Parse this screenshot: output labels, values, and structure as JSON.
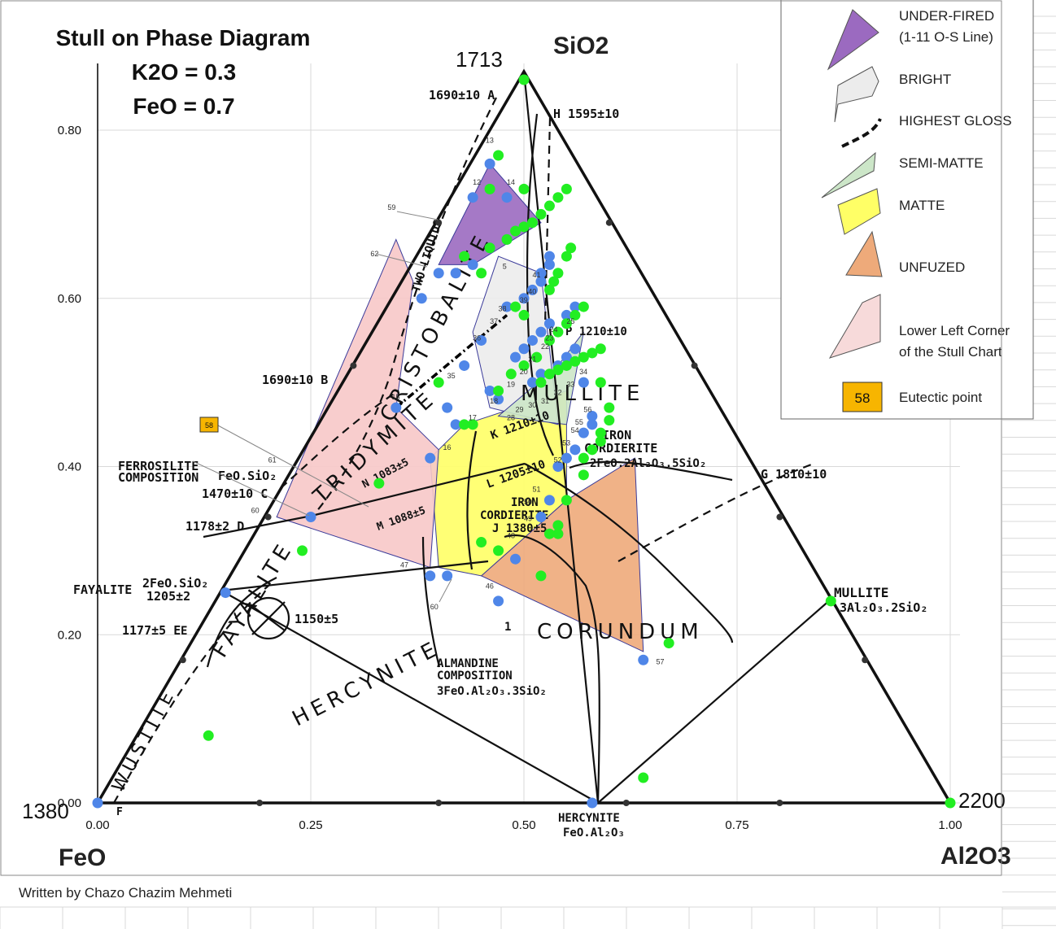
{
  "title_lines": [
    "Stull on Phase Diagram",
    "K2O =  0.3",
    "FeO = 0.7"
  ],
  "author": "Written by Chazo Chazim Mehmeti",
  "chart_data": {
    "type": "scatter",
    "x_axis": {
      "range": [
        0,
        1
      ],
      "ticks": [
        "0.00",
        "0.25",
        "0.50",
        "0.75",
        "1.00"
      ]
    },
    "y_axis": {
      "range": [
        0,
        0.85
      ],
      "ticks": [
        "0.00",
        "0.20",
        "0.40",
        "0.60",
        "0.80"
      ]
    },
    "grid": true,
    "vertices": {
      "sio2": {
        "label": "SiO2",
        "temp": "1713"
      },
      "feo": {
        "label": "FeO",
        "temp": "1380"
      },
      "al2o3": {
        "label": "Al2O3",
        "temp": "2200"
      }
    },
    "phase_fields": [
      "CRISTOBALITE",
      "TRIDYMITE",
      "MULLITE",
      "CORUNDUM",
      "HERCYNITE",
      "FAYALITE",
      "WÜSTITE",
      "TWO LIQUIDS"
    ],
    "annotations": {
      "a1690": "1690±10 A",
      "h1595": "H 1595±10",
      "b1690": "1690±10 B",
      "ferrosilite1": "FERROSILITE",
      "ferrosilite2": "COMPOSITION",
      "ferrosilite_formula": "FeO.SiO₂",
      "c1470": "1470±10 C",
      "d1178": "1178±2  D",
      "fayalite": "FAYALITE",
      "fayalite_formula": "2FeO.SiO₂",
      "fayalite_temp": "1205±2",
      "e1177": "1177±5  E",
      "t1150": "1150±5",
      "almandine1": "ALMANDINE",
      "almandine2": "COMPOSITION",
      "almandine_formula": "3FeO.Al₂O₃.3SiO₂",
      "hercynite_comp": "HERCYNITE",
      "hercynite_formula": "FeO.Al₂O₃",
      "mullite_label": "MULLITE",
      "mullite_formula": "3Al₂O₃.2SiO₂",
      "g1810": "G 1810±10",
      "iron_cordierite1": "IRON",
      "iron_cordierite2": "CORDIERITE",
      "iron_cord_formula": "2FeO.2Al₂O₃.5SiO₂",
      "k1210": "K 1210±10",
      "l1205": "L 1205±10",
      "iron2": "IRON",
      "cordierite2": "CORDIERITE",
      "j1380": "J 1380±5",
      "n1083": "N 1083±5",
      "m1088": "M 1088±5",
      "p1210": "P 1210±10",
      "small_e": "E",
      "small_f": "F",
      "small_1": "1"
    },
    "regions": [
      {
        "name": "UNFUZED",
        "color": "#eeaa7a",
        "points": [
          [
            0.55,
            0.36
          ],
          [
            0.63,
            0.41
          ],
          [
            0.64,
            0.18
          ],
          [
            0.45,
            0.27
          ]
        ]
      },
      {
        "name": "MATTE",
        "color": "#ffff66",
        "points": [
          [
            0.43,
            0.45
          ],
          [
            0.55,
            0.49
          ],
          [
            0.55,
            0.36
          ],
          [
            0.45,
            0.27
          ],
          [
            0.4,
            0.28
          ],
          [
            0.39,
            0.41
          ]
        ]
      },
      {
        "name": "Lower Left Corner of the Stull Chart",
        "color": "#f7c8c8",
        "points": [
          [
            0.37,
            0.62
          ],
          [
            0.35,
            0.47
          ],
          [
            0.4,
            0.42
          ],
          [
            0.39,
            0.28
          ],
          [
            0.21,
            0.34
          ],
          [
            0.35,
            0.67
          ]
        ]
      },
      {
        "name": "BRIGHT",
        "color": "#ececec",
        "points": [
          [
            0.47,
            0.65
          ],
          [
            0.52,
            0.63
          ],
          [
            0.54,
            0.45
          ],
          [
            0.46,
            0.47
          ],
          [
            0.44,
            0.56
          ]
        ]
      },
      {
        "name": "SEMI-MATTE",
        "color": "#cce6c8",
        "points": [
          [
            0.54,
            0.52
          ],
          [
            0.57,
            0.56
          ],
          [
            0.55,
            0.45
          ],
          [
            0.47,
            0.46
          ]
        ]
      },
      {
        "name": "UNDER-FIRED",
        "color": "#9b6ac0",
        "points": [
          [
            0.46,
            0.76
          ],
          [
            0.52,
            0.69
          ],
          [
            0.44,
            0.64
          ],
          [
            0.4,
            0.64
          ]
        ]
      }
    ],
    "highest_gloss_line": {
      "points": [
        [
          0.35,
          0.47
        ],
        [
          0.48,
          0.58
        ]
      ]
    },
    "series": [
      {
        "name": "blue",
        "color": "#4f86e8",
        "points": [
          [
            0.0,
            0.0
          ],
          [
            0.58,
            0.0
          ],
          [
            0.25,
            0.34
          ],
          [
            0.15,
            0.25
          ],
          [
            0.46,
            0.76
          ],
          [
            0.44,
            0.72
          ],
          [
            0.48,
            0.72
          ],
          [
            0.4,
            0.63
          ],
          [
            0.38,
            0.6
          ],
          [
            0.35,
            0.47
          ],
          [
            0.42,
            0.63
          ],
          [
            0.44,
            0.64
          ],
          [
            0.46,
            0.66
          ],
          [
            0.48,
            0.67
          ],
          [
            0.53,
            0.65
          ],
          [
            0.53,
            0.64
          ],
          [
            0.52,
            0.63
          ],
          [
            0.52,
            0.62
          ],
          [
            0.51,
            0.61
          ],
          [
            0.5,
            0.6
          ],
          [
            0.48,
            0.59
          ],
          [
            0.45,
            0.55
          ],
          [
            0.43,
            0.52
          ],
          [
            0.42,
            0.45
          ],
          [
            0.39,
            0.41
          ],
          [
            0.41,
            0.47
          ],
          [
            0.47,
            0.48
          ],
          [
            0.46,
            0.49
          ],
          [
            0.49,
            0.53
          ],
          [
            0.5,
            0.54
          ],
          [
            0.51,
            0.55
          ],
          [
            0.52,
            0.56
          ],
          [
            0.53,
            0.57
          ],
          [
            0.55,
            0.58
          ],
          [
            0.56,
            0.59
          ],
          [
            0.51,
            0.5
          ],
          [
            0.52,
            0.51
          ],
          [
            0.54,
            0.52
          ],
          [
            0.55,
            0.53
          ],
          [
            0.56,
            0.54
          ],
          [
            0.57,
            0.5
          ],
          [
            0.58,
            0.46
          ],
          [
            0.58,
            0.45
          ],
          [
            0.57,
            0.44
          ],
          [
            0.56,
            0.42
          ],
          [
            0.55,
            0.41
          ],
          [
            0.54,
            0.4
          ],
          [
            0.53,
            0.36
          ],
          [
            0.52,
            0.34
          ],
          [
            0.49,
            0.29
          ],
          [
            0.47,
            0.24
          ],
          [
            0.39,
            0.27
          ],
          [
            0.41,
            0.27
          ],
          [
            0.64,
            0.17
          ]
        ]
      },
      {
        "name": "green",
        "color": "#22ee22",
        "points": [
          [
            0.5,
            0.86
          ],
          [
            0.47,
            0.77
          ],
          [
            0.5,
            0.73
          ],
          [
            0.46,
            0.73
          ],
          [
            0.43,
            0.65
          ],
          [
            0.45,
            0.63
          ],
          [
            0.46,
            0.66
          ],
          [
            0.48,
            0.67
          ],
          [
            0.49,
            0.68
          ],
          [
            0.5,
            0.685
          ],
          [
            0.51,
            0.69
          ],
          [
            0.52,
            0.7
          ],
          [
            0.53,
            0.71
          ],
          [
            0.54,
            0.72
          ],
          [
            0.55,
            0.73
          ],
          [
            0.555,
            0.66
          ],
          [
            0.55,
            0.65
          ],
          [
            0.54,
            0.63
          ],
          [
            0.535,
            0.62
          ],
          [
            0.53,
            0.61
          ],
          [
            0.5,
            0.58
          ],
          [
            0.49,
            0.59
          ],
          [
            0.57,
            0.59
          ],
          [
            0.56,
            0.58
          ],
          [
            0.55,
            0.57
          ],
          [
            0.54,
            0.56
          ],
          [
            0.53,
            0.55
          ],
          [
            0.515,
            0.53
          ],
          [
            0.5,
            0.52
          ],
          [
            0.485,
            0.51
          ],
          [
            0.47,
            0.49
          ],
          [
            0.52,
            0.5
          ],
          [
            0.53,
            0.51
          ],
          [
            0.54,
            0.515
          ],
          [
            0.55,
            0.52
          ],
          [
            0.56,
            0.525
          ],
          [
            0.57,
            0.53
          ],
          [
            0.58,
            0.535
          ],
          [
            0.59,
            0.54
          ],
          [
            0.59,
            0.5
          ],
          [
            0.6,
            0.47
          ],
          [
            0.6,
            0.455
          ],
          [
            0.59,
            0.44
          ],
          [
            0.59,
            0.43
          ],
          [
            0.58,
            0.42
          ],
          [
            0.57,
            0.41
          ],
          [
            0.57,
            0.39
          ],
          [
            0.55,
            0.36
          ],
          [
            0.54,
            0.33
          ],
          [
            0.54,
            0.32
          ],
          [
            0.53,
            0.32
          ],
          [
            0.45,
            0.31
          ],
          [
            0.47,
            0.3
          ],
          [
            0.52,
            0.27
          ],
          [
            0.44,
            0.45
          ],
          [
            0.43,
            0.45
          ],
          [
            0.4,
            0.5
          ],
          [
            0.33,
            0.38
          ],
          [
            0.24,
            0.3
          ],
          [
            0.13,
            0.08
          ],
          [
            0.86,
            0.24
          ],
          [
            0.67,
            0.19
          ],
          [
            1.0,
            0.0
          ],
          [
            0.64,
            0.03
          ]
        ]
      },
      {
        "name": "edge-marks",
        "color": "#333333",
        "points": [
          [
            0.19,
            0.0
          ],
          [
            0.4,
            0.0
          ],
          [
            0.8,
            0.0
          ],
          [
            0.62,
            0.0
          ],
          [
            0.1,
            0.17
          ],
          [
            0.2,
            0.34
          ],
          [
            0.3,
            0.52
          ],
          [
            0.4,
            0.69
          ],
          [
            0.6,
            0.69
          ],
          [
            0.7,
            0.52
          ],
          [
            0.8,
            0.34
          ],
          [
            0.9,
            0.17
          ]
        ]
      }
    ],
    "point_labels": [
      {
        "text": "13",
        "x": 0.455,
        "y": 0.785
      },
      {
        "text": "12",
        "x": 0.44,
        "y": 0.735
      },
      {
        "text": "14",
        "x": 0.48,
        "y": 0.735
      },
      {
        "text": "59",
        "x": 0.34,
        "y": 0.705
      },
      {
        "text": "62",
        "x": 0.32,
        "y": 0.65
      },
      {
        "text": "5",
        "x": 0.475,
        "y": 0.635
      },
      {
        "text": "41",
        "x": 0.51,
        "y": 0.625
      },
      {
        "text": "40",
        "x": 0.505,
        "y": 0.605
      },
      {
        "text": "39",
        "x": 0.495,
        "y": 0.595
      },
      {
        "text": "38",
        "x": 0.47,
        "y": 0.585
      },
      {
        "text": "37",
        "x": 0.46,
        "y": 0.57
      },
      {
        "text": "36",
        "x": 0.44,
        "y": 0.55
      },
      {
        "text": "24",
        "x": 0.53,
        "y": 0.56
      },
      {
        "text": "25",
        "x": 0.55,
        "y": 0.57
      },
      {
        "text": "23",
        "x": 0.525,
        "y": 0.55
      },
      {
        "text": "22",
        "x": 0.52,
        "y": 0.54
      },
      {
        "text": "21",
        "x": 0.505,
        "y": 0.525
      },
      {
        "text": "20",
        "x": 0.495,
        "y": 0.51
      },
      {
        "text": "19",
        "x": 0.48,
        "y": 0.495
      },
      {
        "text": "18",
        "x": 0.46,
        "y": 0.475
      },
      {
        "text": "35",
        "x": 0.41,
        "y": 0.505
      },
      {
        "text": "33",
        "x": 0.55,
        "y": 0.495
      },
      {
        "text": "34",
        "x": 0.565,
        "y": 0.51
      },
      {
        "text": "32",
        "x": 0.535,
        "y": 0.485
      },
      {
        "text": "31",
        "x": 0.52,
        "y": 0.475
      },
      {
        "text": "30",
        "x": 0.505,
        "y": 0.47
      },
      {
        "text": "29",
        "x": 0.49,
        "y": 0.465
      },
      {
        "text": "28",
        "x": 0.48,
        "y": 0.455
      },
      {
        "text": "17",
        "x": 0.435,
        "y": 0.455
      },
      {
        "text": "16",
        "x": 0.405,
        "y": 0.42
      },
      {
        "text": "15",
        "x": 0.345,
        "y": 0.48
      },
      {
        "text": "56",
        "x": 0.57,
        "y": 0.465
      },
      {
        "text": "55",
        "x": 0.56,
        "y": 0.45
      },
      {
        "text": "54",
        "x": 0.555,
        "y": 0.44
      },
      {
        "text": "53",
        "x": 0.545,
        "y": 0.425
      },
      {
        "text": "52",
        "x": 0.535,
        "y": 0.405
      },
      {
        "text": "51",
        "x": 0.51,
        "y": 0.37
      },
      {
        "text": "50",
        "x": 0.5,
        "y": 0.355
      },
      {
        "text": "49",
        "x": 0.5,
        "y": 0.335
      },
      {
        "text": "48",
        "x": 0.48,
        "y": 0.315
      },
      {
        "text": "47",
        "x": 0.355,
        "y": 0.28
      },
      {
        "text": "46",
        "x": 0.455,
        "y": 0.255
      },
      {
        "text": "60",
        "x": 0.39,
        "y": 0.23
      },
      {
        "text": "57",
        "x": 0.655,
        "y": 0.165
      },
      {
        "text": "61",
        "x": 0.2,
        "y": 0.405
      },
      {
        "text": "60",
        "x": 0.18,
        "y": 0.345
      }
    ],
    "legend": [
      {
        "label_lines": [
          "UNDER-FIRED",
          "(1-11 O-S Line)"
        ],
        "color": "#9b6ac0"
      },
      {
        "label_lines": [
          "BRIGHT"
        ],
        "color": "#ececec"
      },
      {
        "label_lines": [
          "HIGHEST GLOSS"
        ],
        "color": "#000000"
      },
      {
        "label_lines": [
          "SEMI-MATTE"
        ],
        "color": "#cce6c8"
      },
      {
        "label_lines": [
          "MATTE"
        ],
        "color": "#ffff66"
      },
      {
        "label_lines": [
          "UNFUZED"
        ],
        "color": "#eeaa7a"
      },
      {
        "label_lines": [
          "Lower Left Corner",
          "of the Stull Chart"
        ],
        "color": "#f7c8c8"
      },
      {
        "label_lines": [
          "Eutectic point"
        ],
        "color": "#f7b500",
        "badge": "58"
      }
    ],
    "eutectic_badge": "58"
  }
}
